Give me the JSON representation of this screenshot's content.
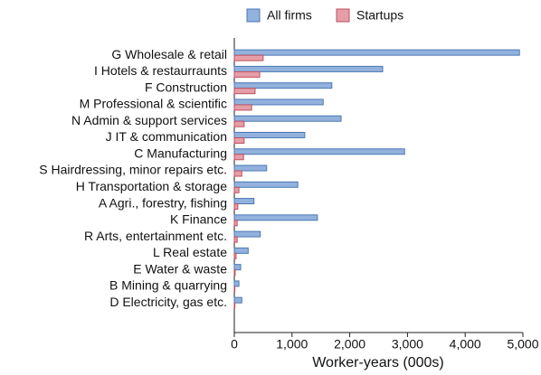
{
  "chart_data": {
    "type": "hbar",
    "categories": [
      "G Wholesale & retail",
      "I Hotels & restaurraunts",
      "F Construction",
      "M Professional & scientific",
      "N Admin & support services",
      "J IT & communication",
      "C Manufacturing",
      "S Hairdressing, minor repairs etc.",
      "H Transportation & storage",
      "A Agri., forestry, fishing",
      "K Finance",
      "R Arts, entertainment etc.",
      "L Real estate",
      "E Water & waste",
      "B Mining & quarrying",
      "D Electricity, gas etc."
    ],
    "series": [
      {
        "name": "All firms",
        "color": "#92b2dd",
        "values": [
          4940,
          2570,
          1690,
          1540,
          1850,
          1220,
          2950,
          560,
          1100,
          340,
          1440,
          450,
          240,
          110,
          80,
          130
        ]
      },
      {
        "name": "Startups",
        "color": "#e59ea8",
        "values": [
          500,
          440,
          360,
          300,
          170,
          170,
          160,
          130,
          80,
          60,
          50,
          50,
          30,
          15,
          10,
          10
        ]
      }
    ],
    "xlabel": "Worker-years (000s)",
    "xlim": [
      0,
      5000
    ],
    "xticks": [
      0,
      {
        "value": 1000,
        "label": "1,000"
      },
      {
        "value": 2000,
        "label": "2,000"
      },
      {
        "value": 3000,
        "label": "3,000"
      },
      {
        "value": 4000,
        "label": "4,000"
      },
      {
        "value": 5000,
        "label": "5,000"
      }
    ],
    "legend": "top"
  }
}
